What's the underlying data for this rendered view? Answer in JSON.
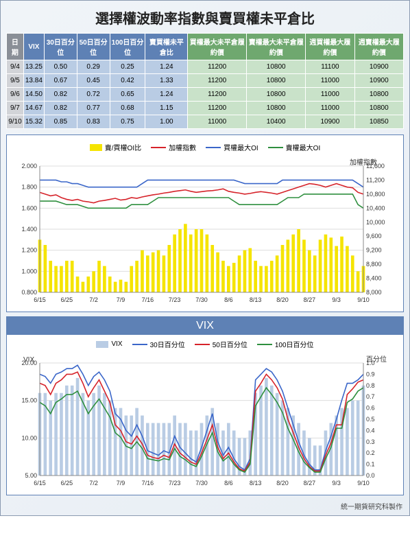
{
  "title": "選擇權波動率指數與賣買權未平倉比",
  "footer": "統一期貨研究科製作",
  "table": {
    "headers": {
      "date": "日期",
      "vix": "VIX",
      "p30": "30日百分位",
      "p50": "50日百分位",
      "p100": "100日百分位",
      "ratio": "賣買權未平倉比",
      "callMaxOI": "買權最大未平倉履約價",
      "putMaxOI": "賣權最大未平倉履約價",
      "wkCallMax": "週買權最大履約價",
      "wkPutMax": "週賣權最大履約價"
    },
    "rows": [
      {
        "date": "9/4",
        "vix": "13.25",
        "p30": "0.50",
        "p50": "0.29",
        "p100": "0.25",
        "ratio": "1.24",
        "callMaxOI": "11200",
        "putMaxOI": "10800",
        "wkCallMax": "11100",
        "wkPutMax": "10900"
      },
      {
        "date": "9/5",
        "vix": "13.84",
        "p30": "0.67",
        "p50": "0.45",
        "p100": "0.42",
        "ratio": "1.33",
        "callMaxOI": "11200",
        "putMaxOI": "10800",
        "wkCallMax": "11000",
        "wkPutMax": "10900"
      },
      {
        "date": "9/6",
        "vix": "14.50",
        "p30": "0.82",
        "p50": "0.72",
        "p100": "0.65",
        "ratio": "1.24",
        "callMaxOI": "11200",
        "putMaxOI": "10800",
        "wkCallMax": "11000",
        "wkPutMax": "10800"
      },
      {
        "date": "9/7",
        "vix": "14.67",
        "p30": "0.82",
        "p50": "0.77",
        "p100": "0.68",
        "ratio": "1.15",
        "callMaxOI": "11200",
        "putMaxOI": "10800",
        "wkCallMax": "11000",
        "wkPutMax": "10800"
      },
      {
        "date": "9/10",
        "vix": "15.32",
        "p30": "0.85",
        "p50": "0.83",
        "p100": "0.75",
        "ratio": "1.00",
        "callMaxOI": "11000",
        "putMaxOI": "10400",
        "wkCallMax": "10900",
        "wkPutMax": "10850"
      }
    ]
  },
  "chart1": {
    "legend": {
      "bar": "賣/買權OI比",
      "red": "加權指數",
      "blue": "買權最大OI",
      "green": "賣權最大OI"
    },
    "y2label": "加權指數",
    "colors": {
      "bar": "#f5e400",
      "red": "#d6232a",
      "blue": "#3a66c9",
      "green": "#2e8f3e",
      "grid": "#dddddd",
      "axis": "#888888"
    },
    "yLeft": {
      "min": 0.8,
      "max": 2.0,
      "step": 0.2
    },
    "yRight": {
      "min": 8000,
      "max": 11600,
      "step": 400
    },
    "xTicks": [
      "6/15",
      "6/25",
      "7/2",
      "7/9",
      "7/16",
      "7/23",
      "7/30",
      "8/6",
      "8/13",
      "8/20",
      "8/27",
      "9/3",
      "9/10"
    ],
    "n": 61,
    "bar": [
      1.3,
      1.25,
      1.1,
      1.05,
      1.05,
      1.1,
      1.1,
      0.95,
      0.9,
      0.95,
      1.0,
      1.1,
      1.05,
      0.95,
      0.9,
      0.92,
      0.9,
      1.05,
      1.1,
      1.2,
      1.15,
      1.18,
      1.2,
      1.15,
      1.25,
      1.35,
      1.4,
      1.45,
      1.35,
      1.4,
      1.4,
      1.35,
      1.25,
      1.18,
      1.1,
      1.05,
      1.08,
      1.15,
      1.2,
      1.22,
      1.1,
      1.05,
      1.05,
      1.1,
      1.15,
      1.25,
      1.3,
      1.35,
      1.4,
      1.3,
      1.2,
      1.15,
      1.3,
      1.35,
      1.32,
      1.24,
      1.33,
      1.24,
      1.15,
      1.0,
      1.05
    ],
    "red": [
      10850,
      10800,
      10750,
      10780,
      10700,
      10650,
      10620,
      10650,
      10600,
      10580,
      10550,
      10600,
      10620,
      10650,
      10680,
      10630,
      10650,
      10700,
      10680,
      10720,
      10750,
      10780,
      10800,
      10830,
      10850,
      10880,
      10900,
      10920,
      10880,
      10850,
      10870,
      10890,
      10900,
      10920,
      10950,
      10880,
      10850,
      10830,
      10800,
      10820,
      10850,
      10870,
      10850,
      10830,
      10800,
      10850,
      10900,
      10950,
      11000,
      11050,
      11100,
      11080,
      11050,
      11000,
      11050,
      11100,
      11050,
      11000,
      10980,
      10850,
      10800
    ],
    "blue": [
      11200,
      11200,
      11200,
      11200,
      11150,
      11150,
      11100,
      11100,
      11050,
      11000,
      11000,
      11000,
      11000,
      11000,
      11000,
      11000,
      11000,
      11000,
      11000,
      11100,
      11200,
      11200,
      11200,
      11200,
      11200,
      11200,
      11200,
      11200,
      11200,
      11200,
      11200,
      11200,
      11200,
      11200,
      11200,
      11200,
      11200,
      11150,
      11100,
      11100,
      11100,
      11100,
      11100,
      11100,
      11100,
      11200,
      11200,
      11200,
      11200,
      11200,
      11200,
      11200,
      11200,
      11200,
      11200,
      11200,
      11200,
      11200,
      11200,
      11100,
      11000
    ],
    "green": [
      10600,
      10600,
      10600,
      10600,
      10550,
      10500,
      10500,
      10500,
      10450,
      10400,
      10400,
      10400,
      10400,
      10400,
      10400,
      10400,
      10400,
      10500,
      10500,
      10500,
      10500,
      10600,
      10700,
      10700,
      10700,
      10700,
      10700,
      10700,
      10700,
      10700,
      10700,
      10700,
      10700,
      10700,
      10700,
      10700,
      10600,
      10500,
      10500,
      10500,
      10500,
      10500,
      10500,
      10500,
      10500,
      10600,
      10700,
      10700,
      10700,
      10800,
      10800,
      10800,
      10800,
      10800,
      10800,
      10800,
      10800,
      10800,
      10800,
      10500,
      10400
    ]
  },
  "chart2": {
    "title": "VIX",
    "legend": {
      "bar": "VIX",
      "blue": "30日百分位",
      "red": "50日百分位",
      "green": "100日百分位"
    },
    "yLeftLabel": "VIX",
    "yRightLabel": "百分位",
    "colors": {
      "bar": "#b9cce4",
      "blue": "#3a66c9",
      "red": "#d6232a",
      "green": "#2e8f3e",
      "grid": "#dddddd",
      "axis": "#888888"
    },
    "yLeft": {
      "min": 5.0,
      "max": 20.0,
      "step": 5.0
    },
    "yRight": {
      "min": 0,
      "max": 1.0,
      "step": 0.1
    },
    "xTicks": [
      "6/15",
      "6/25",
      "7/2",
      "7/9",
      "7/16",
      "7/23",
      "7/30",
      "8/6",
      "8/13",
      "8/20",
      "8/27",
      "9/3",
      "9/10"
    ],
    "n": 61,
    "bar": [
      16,
      16,
      15,
      16,
      16,
      17,
      17,
      18,
      16,
      15,
      16,
      17,
      16,
      15,
      14,
      14,
      13,
      13,
      14,
      13,
      12,
      12,
      12,
      12,
      12,
      13,
      12,
      12,
      11,
      11,
      12,
      13,
      14,
      12,
      11,
      12,
      11,
      10,
      10,
      11,
      16,
      17,
      18,
      17,
      16,
      15,
      14,
      13,
      12,
      11,
      10,
      9,
      9,
      11,
      12,
      13,
      14,
      14,
      15,
      15,
      17
    ],
    "blue": [
      0.9,
      0.88,
      0.82,
      0.9,
      0.92,
      0.95,
      0.95,
      0.98,
      0.9,
      0.8,
      0.88,
      0.92,
      0.85,
      0.75,
      0.55,
      0.5,
      0.4,
      0.35,
      0.45,
      0.35,
      0.22,
      0.2,
      0.18,
      0.22,
      0.2,
      0.35,
      0.25,
      0.2,
      0.15,
      0.12,
      0.25,
      0.4,
      0.55,
      0.3,
      0.18,
      0.25,
      0.15,
      0.08,
      0.05,
      0.15,
      0.85,
      0.9,
      0.95,
      0.92,
      0.85,
      0.75,
      0.6,
      0.45,
      0.3,
      0.18,
      0.1,
      0.05,
      0.05,
      0.22,
      0.35,
      0.5,
      0.67,
      0.82,
      0.82,
      0.85,
      0.9
    ],
    "red": [
      0.82,
      0.8,
      0.72,
      0.82,
      0.85,
      0.9,
      0.9,
      0.92,
      0.82,
      0.7,
      0.78,
      0.85,
      0.75,
      0.65,
      0.45,
      0.4,
      0.3,
      0.28,
      0.35,
      0.28,
      0.18,
      0.16,
      0.15,
      0.18,
      0.16,
      0.28,
      0.2,
      0.16,
      0.12,
      0.1,
      0.2,
      0.32,
      0.45,
      0.25,
      0.15,
      0.2,
      0.12,
      0.06,
      0.04,
      0.12,
      0.75,
      0.82,
      0.9,
      0.85,
      0.78,
      0.68,
      0.5,
      0.38,
      0.25,
      0.15,
      0.08,
      0.04,
      0.04,
      0.18,
      0.29,
      0.45,
      0.45,
      0.72,
      0.77,
      0.83,
      0.85
    ],
    "green": [
      0.65,
      0.62,
      0.55,
      0.65,
      0.68,
      0.72,
      0.72,
      0.75,
      0.65,
      0.55,
      0.62,
      0.68,
      0.6,
      0.52,
      0.38,
      0.34,
      0.26,
      0.24,
      0.3,
      0.24,
      0.15,
      0.14,
      0.13,
      0.15,
      0.14,
      0.24,
      0.17,
      0.14,
      0.1,
      0.08,
      0.17,
      0.28,
      0.38,
      0.21,
      0.13,
      0.17,
      0.1,
      0.05,
      0.03,
      0.1,
      0.62,
      0.7,
      0.78,
      0.72,
      0.65,
      0.56,
      0.42,
      0.32,
      0.21,
      0.12,
      0.07,
      0.03,
      0.03,
      0.15,
      0.25,
      0.42,
      0.42,
      0.65,
      0.68,
      0.75,
      0.78
    ]
  }
}
